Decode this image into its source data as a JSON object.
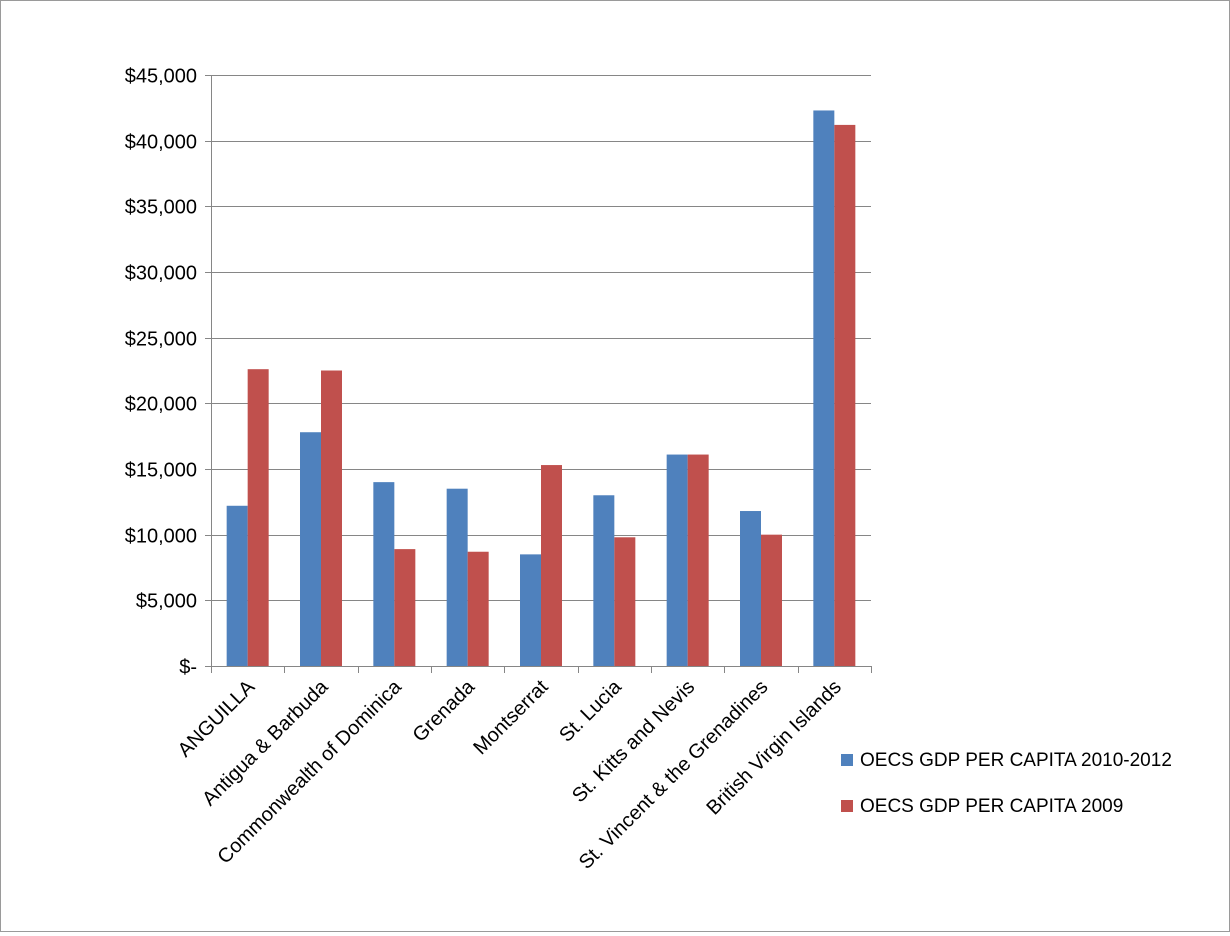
{
  "chart_data": {
    "type": "bar",
    "title": "",
    "xlabel": "",
    "ylabel": "",
    "categories": [
      "ANGUILLA",
      "Antigua & Barbuda",
      "Commonwealth of Dominica",
      "Grenada",
      "Montserrat",
      "St. Lucia",
      "St. Kitts and Nevis",
      "St. Vincent & the Grenadines",
      "British Virgin Islands"
    ],
    "series": [
      {
        "name": "OECS GDP PER CAPITA 2010-2012",
        "color": "#4f81bd",
        "values": [
          12200,
          17800,
          14000,
          13500,
          8500,
          13000,
          16100,
          11800,
          42300
        ]
      },
      {
        "name": "OECS GDP PER CAPITA 2009",
        "color": "#c0504d",
        "values": [
          22600,
          22500,
          8900,
          8700,
          15300,
          9800,
          16100,
          10000,
          41200
        ]
      }
    ],
    "ylim": [
      0,
      45000
    ],
    "y_ticks": [
      0,
      5000,
      10000,
      15000,
      20000,
      25000,
      30000,
      35000,
      40000,
      45000
    ],
    "y_tick_labels": [
      "$-",
      "$5,000",
      "$10,000",
      "$15,000",
      "$20,000",
      "$25,000",
      "$30,000",
      "$35,000",
      "$40,000",
      "$45,000"
    ],
    "grid": true,
    "legend_position": "bottom-right"
  }
}
